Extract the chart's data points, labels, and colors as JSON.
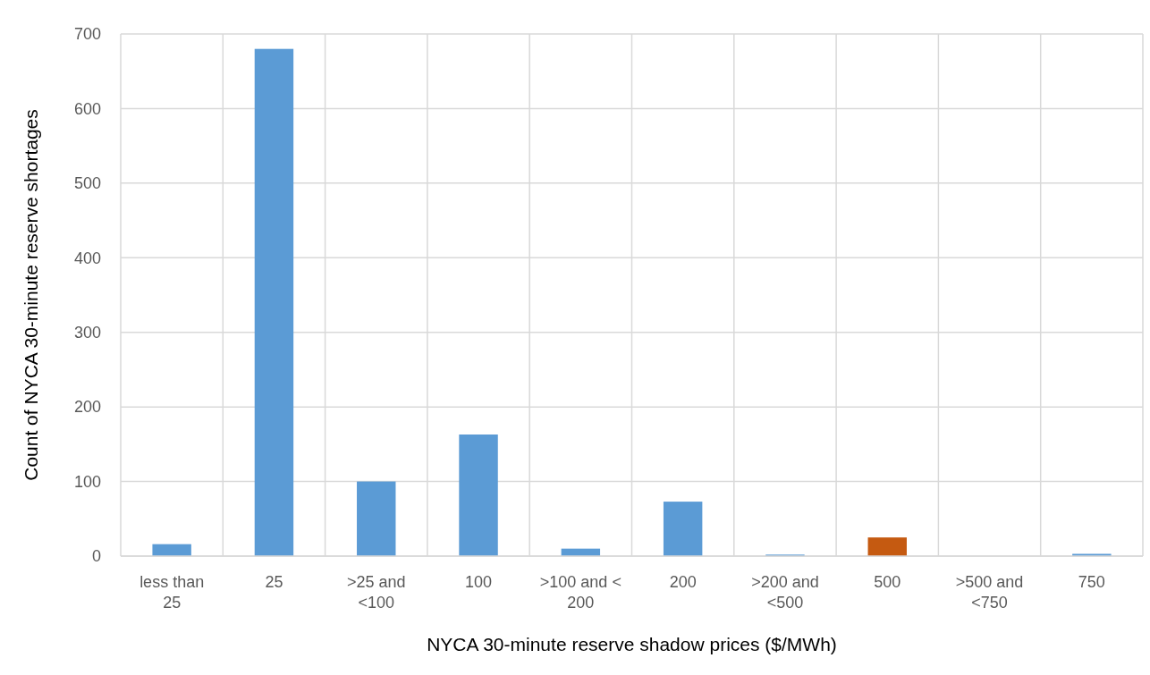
{
  "chart_data": {
    "type": "bar",
    "xlabel": "NYCA 30-minute reserve shadow prices ($/MWh)",
    "ylabel": "Count of NYCA 30-minute reserve shortages",
    "categories": [
      "less than 25",
      "25",
      ">25 and <100",
      "100",
      ">100 and < 200",
      "200",
      ">200 and <500",
      "500",
      ">500 and <750",
      "750"
    ],
    "values": [
      16,
      680,
      100,
      163,
      10,
      73,
      2,
      25,
      0,
      3
    ],
    "colors": [
      "#5b9bd5",
      "#5b9bd5",
      "#5b9bd5",
      "#5b9bd5",
      "#5b9bd5",
      "#5b9bd5",
      "#5b9bd5",
      "#c55a11",
      "#5b9bd5",
      "#5b9bd5"
    ],
    "ylim": [
      0,
      700
    ],
    "yticks": [
      0,
      100,
      200,
      300,
      400,
      500,
      600,
      700
    ],
    "grid": true
  }
}
